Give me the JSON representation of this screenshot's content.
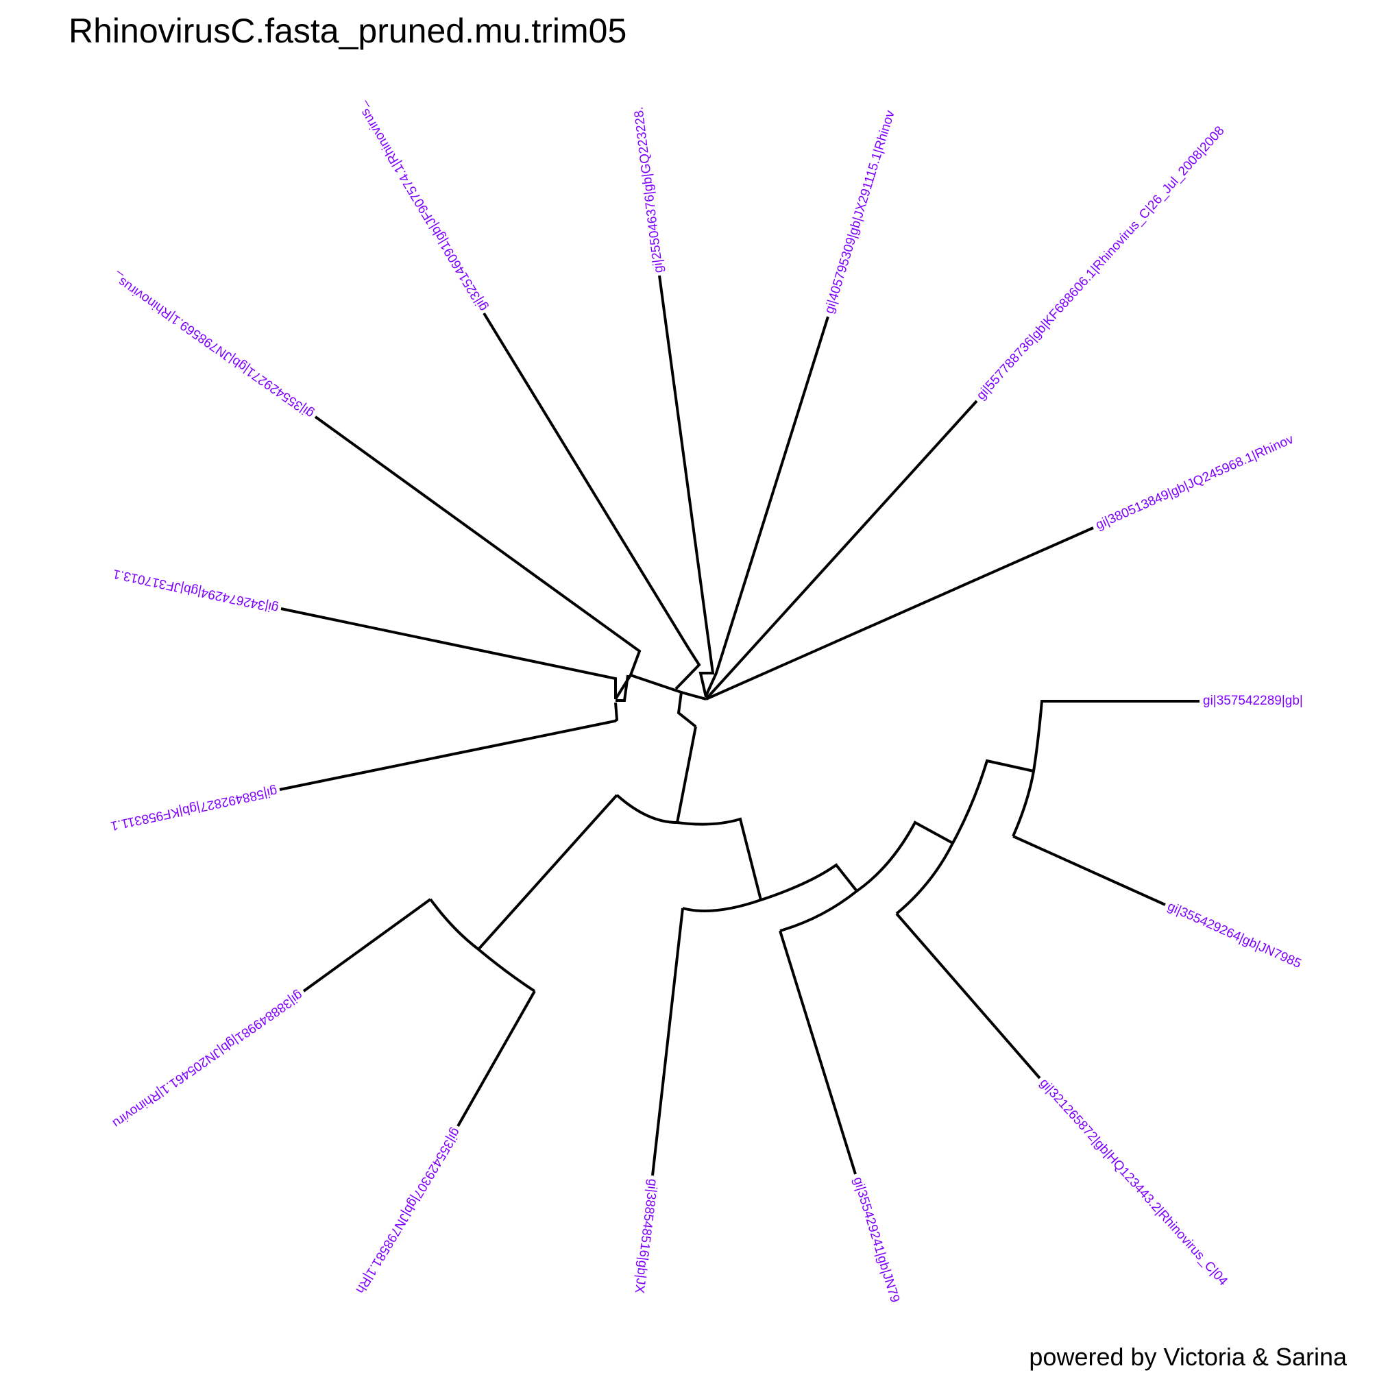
{
  "title": "RhinovirusC.fasta_pruned.mu.trim05",
  "footer": "powered by Victoria & Sarina",
  "colors": {
    "branch": "#000000",
    "tip_label": "#7f00ff",
    "background": "#ffffff"
  },
  "tips": [
    {
      "id": "t1",
      "label": "gi|325146091|gb|JF907574.1|Rhinovirus_"
    },
    {
      "id": "t2",
      "label": "gi|255046376|gb|GQ223228."
    },
    {
      "id": "t3",
      "label": "gi|405795309|gb|JX291115.1|Rhinov"
    },
    {
      "id": "t4",
      "label": "gi|557788736|gb|KF688606.1|Rhinovirus_C|26_Jul_2008|2008"
    },
    {
      "id": "t5",
      "label": "gi|380513849|gb|JQ245968.1|Rhinov"
    },
    {
      "id": "t6",
      "label": "gi|357542289|gb|"
    },
    {
      "id": "t7",
      "label": "gi|355429264|gb|JN7985"
    },
    {
      "id": "t8",
      "label": "gi|321265872|gb|HQ123443.2|Rhinovirus_C|04"
    },
    {
      "id": "t9",
      "label": "gi|355429241|gb|JN79"
    },
    {
      "id": "t10",
      "label": "gi|388548516|gb|JX"
    },
    {
      "id": "t11",
      "label": "gi|355429307|gb|JN798581.1|Rh"
    },
    {
      "id": "t12",
      "label": "gi|388849981|gb|JN205461.1|Rhinoviru"
    },
    {
      "id": "t13",
      "label": "gi|588492827|gb|KF958311.1"
    },
    {
      "id": "t14",
      "label": "gi|342674294|gb|JF317013.1"
    },
    {
      "id": "t15",
      "label": "gi|355429271|gb|JN798569.1|Rhinovirus_"
    }
  ]
}
